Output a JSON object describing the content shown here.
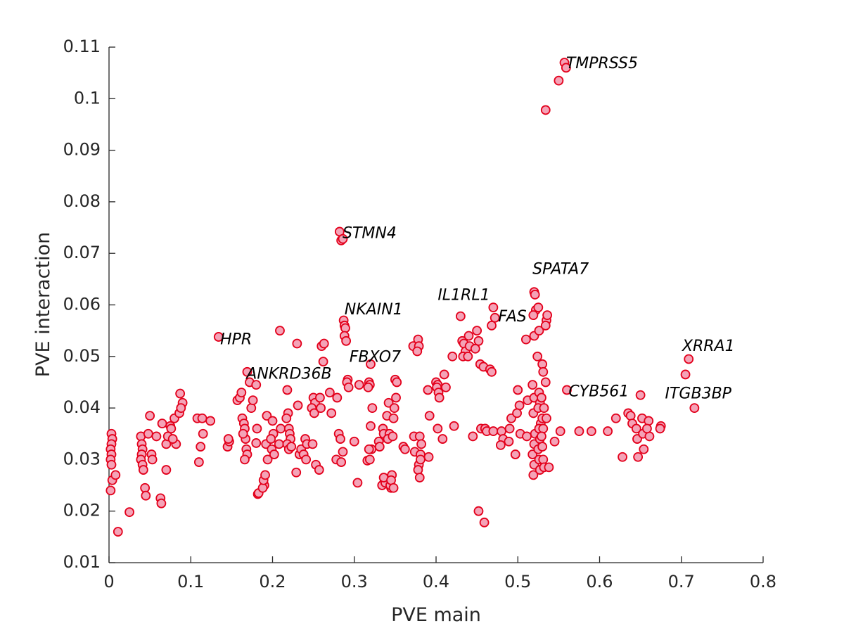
{
  "chart_data": {
    "type": "scatter",
    "xlabel": "PVE main",
    "ylabel": "PVE interaction",
    "xlim": [
      0,
      0.8
    ],
    "xticks": [
      0,
      0.1,
      0.2,
      0.3,
      0.4,
      0.5,
      0.6,
      0.7,
      0.8
    ],
    "ylim": [
      0.01,
      0.11
    ],
    "yticks": [
      0.01,
      0.02,
      0.03,
      0.04,
      0.05,
      0.06,
      0.07,
      0.08,
      0.09,
      0.1,
      0.11
    ],
    "marker_fill": "#f4a3b7",
    "marker_edge": "#e3001b",
    "x": [
      0.003,
      0.004,
      0.003,
      0.002,
      0.003,
      0.002,
      0.003,
      0.004,
      0.002,
      0.008,
      0.011,
      0.025,
      0.039,
      0.04,
      0.041,
      0.04,
      0.039,
      0.041,
      0.042,
      0.044,
      0.045,
      0.05,
      0.048,
      0.052,
      0.053,
      0.058,
      0.063,
      0.064,
      0.065,
      0.07,
      0.072,
      0.07,
      0.075,
      0.08,
      0.082,
      0.078,
      0.076,
      0.087,
      0.09,
      0.086,
      0.088,
      0.108,
      0.11,
      0.112,
      0.114,
      0.115,
      0.124,
      0.134,
      0.145,
      0.147,
      0.146,
      0.157,
      0.16,
      0.162,
      0.163,
      0.165,
      0.166,
      0.167,
      0.168,
      0.169,
      0.166,
      0.164,
      0.169,
      0.172,
      0.174,
      0.176,
      0.18,
      0.182,
      0.183,
      0.18,
      0.181,
      0.19,
      0.188,
      0.189,
      0.191,
      0.193,
      0.192,
      0.194,
      0.2,
      0.201,
      0.199,
      0.202,
      0.198,
      0.209,
      0.21,
      0.208,
      0.218,
      0.219,
      0.217,
      0.22,
      0.221,
      0.222,
      0.218,
      0.22,
      0.223,
      0.23,
      0.231,
      0.233,
      0.229,
      0.235,
      0.24,
      0.242,
      0.238,
      0.241,
      0.25,
      0.252,
      0.248,
      0.251,
      0.249,
      0.253,
      0.26,
      0.263,
      0.262,
      0.258,
      0.259,
      0.257,
      0.27,
      0.272,
      0.282,
      0.284,
      0.286,
      0.279,
      0.281,
      0.283,
      0.278,
      0.287,
      0.288,
      0.289,
      0.288,
      0.29,
      0.286,
      0.284,
      0.292,
      0.291,
      0.293,
      0.3,
      0.304,
      0.306,
      0.318,
      0.319,
      0.317,
      0.32,
      0.316,
      0.321,
      0.322,
      0.32,
      0.318,
      0.319,
      0.33,
      0.331,
      0.335,
      0.336,
      0.337,
      0.334,
      0.338,
      0.336,
      0.34,
      0.342,
      0.343,
      0.341,
      0.345,
      0.344,
      0.35,
      0.352,
      0.351,
      0.349,
      0.348,
      0.347,
      0.346,
      0.345,
      0.348,
      0.36,
      0.362,
      0.372,
      0.373,
      0.374,
      0.378,
      0.379,
      0.377,
      0.38,
      0.382,
      0.381,
      0.379,
      0.378,
      0.38,
      0.381,
      0.39,
      0.392,
      0.391,
      0.4,
      0.402,
      0.401,
      0.403,
      0.404,
      0.402,
      0.41,
      0.412,
      0.408,
      0.42,
      0.422,
      0.43,
      0.432,
      0.434,
      0.436,
      0.433,
      0.44,
      0.441,
      0.439,
      0.45,
      0.452,
      0.448,
      0.454,
      0.445,
      0.452,
      0.455,
      0.458,
      0.46,
      0.459,
      0.462,
      0.47,
      0.472,
      0.468,
      0.466,
      0.468,
      0.47,
      0.48,
      0.482,
      0.479,
      0.49,
      0.489,
      0.492,
      0.5,
      0.502,
      0.499,
      0.503,
      0.497,
      0.51,
      0.512,
      0.511,
      0.52,
      0.521,
      0.522,
      0.519,
      0.52,
      0.518,
      0.52,
      0.519,
      0.521,
      0.52,
      0.518,
      0.52,
      0.519,
      0.525,
      0.526,
      0.524,
      0.526,
      0.527,
      0.525,
      0.528,
      0.526,
      0.527,
      0.525,
      0.526,
      0.527,
      0.53,
      0.531,
      0.529,
      0.532,
      0.53,
      0.531,
      0.529,
      0.53,
      0.531,
      0.532,
      0.535,
      0.534,
      0.536,
      0.534,
      0.535,
      0.538,
      0.545,
      0.55,
      0.557,
      0.559,
      0.534,
      0.56,
      0.552,
      0.575,
      0.59,
      0.61,
      0.62,
      0.628,
      0.635,
      0.638,
      0.64,
      0.645,
      0.646,
      0.647,
      0.65,
      0.652,
      0.653,
      0.654,
      0.66,
      0.661,
      0.658,
      0.675,
      0.674,
      0.705,
      0.709,
      0.716
    ],
    "values": [
      0.035,
      0.034,
      0.033,
      0.032,
      0.031,
      0.03,
      0.029,
      0.026,
      0.024,
      0.027,
      0.016,
      0.0198,
      0.0345,
      0.033,
      0.032,
      0.031,
      0.03,
      0.029,
      0.028,
      0.0245,
      0.023,
      0.0385,
      0.035,
      0.031,
      0.03,
      0.0345,
      0.0225,
      0.0215,
      0.037,
      0.033,
      0.0345,
      0.028,
      0.0365,
      0.038,
      0.033,
      0.034,
      0.036,
      0.0428,
      0.041,
      0.039,
      0.04,
      0.038,
      0.0295,
      0.0325,
      0.038,
      0.035,
      0.0375,
      0.0538,
      0.0325,
      0.0335,
      0.034,
      0.0415,
      0.042,
      0.043,
      0.038,
      0.037,
      0.036,
      0.034,
      0.032,
      0.031,
      0.03,
      0.035,
      0.047,
      0.045,
      0.04,
      0.0415,
      0.0445,
      0.0233,
      0.0235,
      0.0332,
      0.036,
      0.025,
      0.0245,
      0.026,
      0.027,
      0.0385,
      0.033,
      0.03,
      0.0375,
      0.035,
      0.032,
      0.031,
      0.034,
      0.055,
      0.036,
      0.033,
      0.0435,
      0.039,
      0.038,
      0.036,
      0.035,
      0.034,
      0.033,
      0.032,
      0.0325,
      0.0525,
      0.0405,
      0.031,
      0.0275,
      0.032,
      0.034,
      0.033,
      0.031,
      0.03,
      0.042,
      0.041,
      0.04,
      0.039,
      0.033,
      0.029,
      0.052,
      0.0525,
      0.049,
      0.042,
      0.04,
      0.028,
      0.043,
      0.039,
      0.0742,
      0.0725,
      0.0728,
      0.042,
      0.035,
      0.034,
      0.03,
      0.057,
      0.056,
      0.0555,
      0.054,
      0.053,
      0.0315,
      0.0295,
      0.0455,
      0.045,
      0.044,
      0.0335,
      0.0255,
      0.0445,
      0.045,
      0.0445,
      0.044,
      0.0485,
      0.0298,
      0.032,
      0.04,
      0.0365,
      0.032,
      0.03,
      0.0335,
      0.0325,
      0.036,
      0.035,
      0.026,
      0.025,
      0.0255,
      0.0265,
      0.0385,
      0.041,
      0.035,
      0.034,
      0.0245,
      0.025,
      0.0455,
      0.045,
      0.042,
      0.04,
      0.038,
      0.0345,
      0.027,
      0.026,
      0.0245,
      0.0325,
      0.032,
      0.052,
      0.0345,
      0.0315,
      0.0533,
      0.052,
      0.051,
      0.0345,
      0.033,
      0.031,
      0.029,
      0.028,
      0.0265,
      0.03,
      0.0435,
      0.0385,
      0.0305,
      0.045,
      0.0445,
      0.044,
      0.043,
      0.042,
      0.036,
      0.0465,
      0.044,
      0.034,
      0.05,
      0.0365,
      0.0578,
      0.053,
      0.0525,
      0.051,
      0.05,
      0.054,
      0.052,
      0.05,
      0.055,
      0.053,
      0.0515,
      0.0485,
      0.0345,
      0.02,
      0.036,
      0.048,
      0.036,
      0.0178,
      0.0355,
      0.0595,
      0.0575,
      0.056,
      0.0475,
      0.047,
      0.0355,
      0.0355,
      0.034,
      0.0328,
      0.036,
      0.0335,
      0.038,
      0.0435,
      0.0405,
      0.039,
      0.035,
      0.031,
      0.0533,
      0.0415,
      0.0345,
      0.0625,
      0.062,
      0.059,
      0.058,
      0.054,
      0.0445,
      0.042,
      0.039,
      0.035,
      0.033,
      0.031,
      0.029,
      0.027,
      0.0595,
      0.055,
      0.05,
      0.043,
      0.041,
      0.04,
      0.037,
      0.036,
      0.034,
      0.032,
      0.03,
      0.028,
      0.0485,
      0.047,
      0.042,
      0.04,
      0.038,
      0.036,
      0.0345,
      0.0325,
      0.03,
      0.0285,
      0.057,
      0.056,
      0.058,
      0.045,
      0.038,
      0.0285,
      0.0335,
      0.1035,
      0.107,
      0.106,
      0.0978,
      0.0435,
      0.0355,
      0.0355,
      0.0355,
      0.0355,
      0.038,
      0.0305,
      0.039,
      0.0385,
      0.037,
      0.036,
      0.034,
      0.0305,
      0.0425,
      0.038,
      0.035,
      0.032,
      0.0375,
      0.0345,
      0.036,
      0.0365,
      0.036,
      0.0465,
      0.0495,
      0.04
    ],
    "annotations": [
      {
        "text": "TMPRSS5",
        "x": 0.559,
        "y": 0.1067
      },
      {
        "text": "STMN4",
        "x": 0.2856,
        "y": 0.0738
      },
      {
        "text": "SPATA7",
        "x": 0.518,
        "y": 0.0668
      },
      {
        "text": "IL1RL1",
        "x": 0.402,
        "y": 0.0618
      },
      {
        "text": "NKAIN1",
        "x": 0.288,
        "y": 0.059
      },
      {
        "text": "FAS",
        "x": 0.476,
        "y": 0.0576
      },
      {
        "text": "HPR",
        "x": 0.136,
        "y": 0.0532
      },
      {
        "text": "XRRA1",
        "x": 0.701,
        "y": 0.0519
      },
      {
        "text": "FBXO7",
        "x": 0.294,
        "y": 0.0498
      },
      {
        "text": "ANKRD36B",
        "x": 0.168,
        "y": 0.0465
      },
      {
        "text": "CYB561",
        "x": 0.562,
        "y": 0.0431
      },
      {
        "text": "ITGB3BP",
        "x": 0.68,
        "y": 0.0427
      }
    ]
  }
}
